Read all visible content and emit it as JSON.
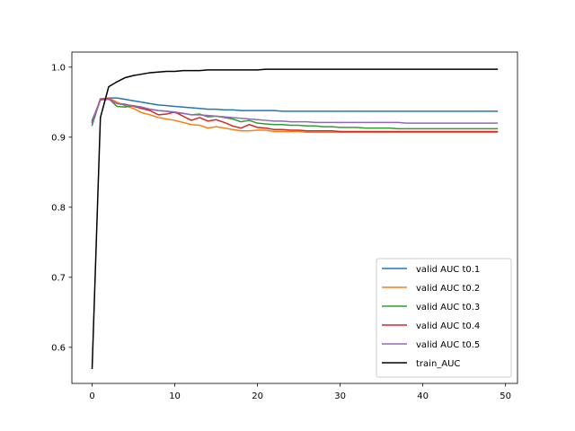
{
  "chart_data": {
    "type": "line",
    "title": "",
    "xlabel": "",
    "ylabel": "",
    "xlim": [
      -2.45,
      51.45
    ],
    "ylim": [
      0.5485,
      1.0215
    ],
    "xticks": [
      0,
      10,
      20,
      30,
      40,
      50
    ],
    "xtick_labels": [
      "0",
      "10",
      "20",
      "30",
      "40",
      "50"
    ],
    "yticks": [
      0.6,
      0.7,
      0.8,
      0.9,
      1.0
    ],
    "ytick_labels": [
      "0.6",
      "0.7",
      "0.8",
      "0.9",
      "1.0"
    ],
    "grid": false,
    "legend_position": "lower right",
    "x": [
      0,
      1,
      2,
      3,
      4,
      5,
      6,
      7,
      8,
      9,
      10,
      11,
      12,
      13,
      14,
      15,
      16,
      17,
      18,
      19,
      20,
      21,
      22,
      23,
      24,
      25,
      26,
      27,
      28,
      29,
      30,
      31,
      32,
      33,
      34,
      35,
      36,
      37,
      38,
      39,
      40,
      41,
      42,
      43,
      44,
      45,
      46,
      47,
      48,
      49
    ],
    "series": [
      {
        "name": "valid AUC t0.1",
        "color": "#1f77b4",
        "values": [
          0.924,
          0.953,
          0.956,
          0.956,
          0.954,
          0.952,
          0.95,
          0.948,
          0.946,
          0.945,
          0.944,
          0.943,
          0.942,
          0.941,
          0.94,
          0.94,
          0.939,
          0.939,
          0.938,
          0.938,
          0.938,
          0.938,
          0.938,
          0.937,
          0.937,
          0.937,
          0.937,
          0.937,
          0.937,
          0.937,
          0.937,
          0.937,
          0.937,
          0.937,
          0.937,
          0.937,
          0.937,
          0.937,
          0.937,
          0.937,
          0.937,
          0.937,
          0.937,
          0.937,
          0.937,
          0.937,
          0.937,
          0.937,
          0.937,
          0.937
        ]
      },
      {
        "name": "valid AUC t0.2",
        "color": "#ff7f0e",
        "values": [
          0.92,
          0.955,
          0.956,
          0.95,
          0.945,
          0.941,
          0.935,
          0.932,
          0.928,
          0.926,
          0.924,
          0.921,
          0.918,
          0.917,
          0.913,
          0.915,
          0.913,
          0.911,
          0.909,
          0.909,
          0.91,
          0.91,
          0.908,
          0.908,
          0.908,
          0.908,
          0.907,
          0.907,
          0.907,
          0.907,
          0.907,
          0.907,
          0.907,
          0.907,
          0.907,
          0.907,
          0.907,
          0.907,
          0.907,
          0.907,
          0.907,
          0.907,
          0.907,
          0.907,
          0.907,
          0.907,
          0.907,
          0.907,
          0.907,
          0.907
        ]
      },
      {
        "name": "valid AUC t0.3",
        "color": "#2ca02c",
        "values": [
          0.917,
          0.954,
          0.955,
          0.944,
          0.943,
          0.945,
          0.941,
          0.94,
          0.938,
          0.937,
          0.935,
          0.934,
          0.932,
          0.933,
          0.929,
          0.93,
          0.928,
          0.926,
          0.922,
          0.924,
          0.92,
          0.919,
          0.918,
          0.918,
          0.917,
          0.917,
          0.916,
          0.916,
          0.915,
          0.915,
          0.914,
          0.914,
          0.914,
          0.913,
          0.913,
          0.913,
          0.913,
          0.912,
          0.912,
          0.912,
          0.912,
          0.912,
          0.912,
          0.912,
          0.912,
          0.912,
          0.912,
          0.912,
          0.912,
          0.912
        ]
      },
      {
        "name": "valid AUC t0.4",
        "color": "#d62728",
        "values": [
          0.922,
          0.954,
          0.955,
          0.948,
          0.947,
          0.944,
          0.941,
          0.938,
          0.932,
          0.933,
          0.936,
          0.93,
          0.924,
          0.928,
          0.923,
          0.925,
          0.921,
          0.916,
          0.913,
          0.918,
          0.914,
          0.913,
          0.911,
          0.911,
          0.91,
          0.91,
          0.909,
          0.909,
          0.909,
          0.909,
          0.908,
          0.908,
          0.908,
          0.908,
          0.908,
          0.908,
          0.908,
          0.908,
          0.908,
          0.908,
          0.908,
          0.908,
          0.908,
          0.908,
          0.908,
          0.908,
          0.908,
          0.908,
          0.908,
          0.908
        ]
      },
      {
        "name": "valid AUC t0.5",
        "color": "#9467bd",
        "values": [
          0.921,
          0.953,
          0.954,
          0.948,
          0.946,
          0.945,
          0.943,
          0.94,
          0.938,
          0.937,
          0.936,
          0.934,
          0.932,
          0.932,
          0.931,
          0.93,
          0.929,
          0.928,
          0.927,
          0.926,
          0.925,
          0.924,
          0.923,
          0.923,
          0.922,
          0.922,
          0.922,
          0.921,
          0.921,
          0.921,
          0.921,
          0.921,
          0.921,
          0.921,
          0.921,
          0.921,
          0.921,
          0.921,
          0.92,
          0.92,
          0.92,
          0.92,
          0.92,
          0.92,
          0.92,
          0.92,
          0.92,
          0.92,
          0.92,
          0.92
        ]
      },
      {
        "name": "train_AUC",
        "color": "#000000",
        "values": [
          0.57,
          0.928,
          0.972,
          0.979,
          0.985,
          0.988,
          0.99,
          0.992,
          0.993,
          0.994,
          0.994,
          0.995,
          0.995,
          0.995,
          0.996,
          0.996,
          0.996,
          0.996,
          0.996,
          0.996,
          0.996,
          0.997,
          0.997,
          0.997,
          0.997,
          0.997,
          0.997,
          0.997,
          0.997,
          0.997,
          0.997,
          0.997,
          0.997,
          0.997,
          0.997,
          0.997,
          0.997,
          0.997,
          0.997,
          0.997,
          0.997,
          0.997,
          0.997,
          0.997,
          0.997,
          0.997,
          0.997,
          0.997,
          0.997,
          0.997
        ]
      }
    ]
  }
}
